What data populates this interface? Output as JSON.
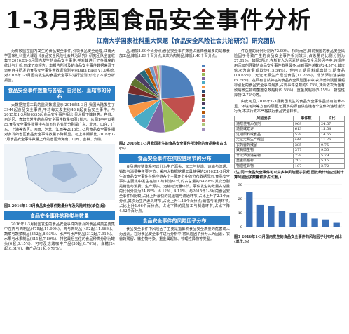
{
  "header": {
    "title": "1-3月我国食品安全事件分析",
    "subtitle": "江南大学国家社科重大课题【食品安全风险社会共治研究】研究团队"
  },
  "left": {
    "intro": "为有效监控国内发生的食品安全事件,引领食品安全治理,江南大学国家社科重大课题《食品安全风险社会共治研究》研究团队全面收集了2016年1-3月国内发生的食品安全事件,并对其进行了多维度的统计与分析,形成了本报告。本报告所涉及的食品安全事件数据来源于运用自主研发的食品安全事件大数据监测平台Data Base V1.0系统,对2016年1-3月国内发生的食品安全事件进行监测,形成了本季分析报告。",
    "heading1": "食品安全事件数量与各省、自治区、直辖市的分布",
    "para1": "大数据挖掘工具的监测数据显示,2016年1-3月,我国大陆发生了3944起食品安全事件,平均每天发生约43.8起食品安全事件。与2015年1-3月的6555起食品安全事件相比,呈大幅下降趋势。各省、自治区、直辖市发生的食品安全事件数量如图1所示。从图1中可以看出,食品安全事件数量排名前五位的省份分别是广东、北京、山东、广东、上海等省区。河南、河北、江西等2015年1-3月食品安全事件相对多发的省区食品安全事件数量下降明显。与上半期相比,2016年1-3月食品安全事件数量上升的省区为海南、山西、吉林、安徽。",
    "fig1_caption": "图1 2016年1-3月食品安全事件数量分布及风险时刻(单位:起)",
    "heading2": "食品安全事件的种类与数量",
    "para2": "2016年1-3月我国发生的食品安全事件所涉及的食品种类主要集中在肉与肉制品(475起,11.99%)、肉与肉制品(452起,11.46%)、蔬菜与蔬菜制品(352起,8.93%)、水产与水产制品(312起,7.91%)、水果与水果制品(311起,7.89%)、排名最后五位的食品种类分别为罐头(6起,0.15%)、可可及焙烤咖啡产品(30起,0.76%)、食糖(24起,0.61%)、蜂产品(31起,0.79%)。"
  },
  "middle": {
    "para0": "品,增加1.99个百分点;食品安全事件数量占比降低最多的是粮食加工品,降低1.89个百分点,其次为肉制品,降低1.40个百分点。",
    "fig2_caption": "图2 2016年1-3月我国发生的食品安全事件所涉及的食品种类占比(%)",
    "heading3": "食品安全事件在供应链环节的分布",
    "para3": "食品供应链体系可以分为生产源头、加工与制造、运输与流通、销售与消费等主要环节。采用大数据挖掘工具获得的2016年1-3月发生的食品安全事件在供应链各个主要环节中的分布数据显示,食品安全事件主要集中发生在加工与制造环节,约占总量的64.88%;其次分别是销售与消费、生产源头、运输与流通环节。事件发生的数量占总量的比例分别为24.88%、6.12%、4.11%。与2015年1-3月的食品安全事件相比较,占比上升最快的是运输与流通环节,占比上升了2.2个百分点,其次为生产源头环节,占比上升1.16个百分点;销售与消费环节,占比上升1.06个百分点。占比下降的是加工与制造环节,占比下降4.42个百分点。",
    "heading4": "食品安全事件的风险因子分布",
    "para4": "食品安全事件中风险因子主要是指影响食品安全质量的危害或人为因素。在对食品安全事件进行分析中,将风险因子分为人为因素、农兽药残留、微生物污染、重金属超标、物理性异物等类型。"
  },
  "right": {
    "para0": "件总量的比例分别为72.99%。相对而言,目前我国的食品安全风险因子导致产生的食品安全事件相对较少,占总量的比例分别为27.01%。如图3所示,在所有人为因素的食品安全风险因子中,违规使用添加剂导致的食品安全事件数量最多,占到事件总数的24.57%,其次依次为造假或欺诈(15.54%)、使用过期原料或出售过期食品(14.65%)、无证无照生产经营食品(11.26%)。非法添加违禁物(5.79%)。在具有自然特征的食品安全风险因子中,农药兽药残留量超标引起的食品安全事件最多,占到事件总数的9.75%,其余依次为含有致病微生物或菌落总数超标(9.55%)、重金属超标(5.15%)、物理性异物(2.72%)等。",
    "para1": "由此可见,2016年1-3月我国发生的食品安全事件虽然有技术不足、环境污染等方面的原因,但更多的源自供应链各个主体的违规违法行为,不执行或不严格执行食品安全标准。",
    "table": {
      "head": [
        "风险因子",
        "事件数",
        "占比"
      ],
      "rows": [
        [
          "违规使用添加剂",
          "969",
          "24.57"
        ],
        [
          "造假或欺诈",
          "613",
          "15.54"
        ],
        [
          "过期原料或食品",
          "578",
          "14.65"
        ],
        [
          "无证无照生产经营",
          "444",
          "11.26"
        ],
        [
          "农药兽药残留",
          "385",
          "9.75"
        ],
        [
          "致病微生物",
          "377",
          "9.55"
        ],
        [
          "非法添加违禁物",
          "228",
          "5.79"
        ],
        [
          "重金属超标",
          "203",
          "5.15"
        ],
        [
          "物理性异物",
          "107",
          "2.72"
        ]
      ]
    },
    "table_note": "(注:同一食品安全事件可以由多种风险因子引起,因此统计时应分别计算风险因子数量和所占比重。)",
    "fig3_caption": "图3 2016年1-3月国内发生的食品安全事件的风险因子分布与占比(单位:%)"
  },
  "chart_data": [
    {
      "type": "pie",
      "categories": [
        null,
        null,
        null,
        null,
        null,
        null,
        null,
        null,
        null,
        null,
        null,
        null,
        null,
        null,
        null,
        null
      ],
      "values": [
        23.5,
        14.2,
        10.6,
        9.1,
        8.0,
        6.5,
        5.7,
        4.3,
        3.8,
        3.2,
        2.9,
        2.4,
        2.0,
        1.6,
        1.2,
        1.0
      ],
      "colors": [
        "#4f81bd",
        "#c0504d",
        "#9bbb59",
        "#8064a2",
        "#4bacc6",
        "#f79646",
        "#2c4d75",
        "#772c2a",
        "#5f7530",
        "#4d3b62",
        "#276a7c",
        "#b65708",
        "#729aca",
        "#cd7371",
        "#afc97a",
        "#a18fbb"
      ]
    },
    {
      "type": "bar",
      "categories": [
        null,
        null,
        null,
        null,
        null,
        null,
        null,
        null,
        null
      ],
      "values": [
        24.57,
        15.54,
        14.65,
        11.26,
        9.75,
        9.55,
        5.79,
        5.15,
        2.72
      ],
      "color": "#3a6fb7",
      "ylim": [
        0,
        30
      ],
      "yticks": [
        0,
        10,
        20,
        30
      ]
    }
  ]
}
